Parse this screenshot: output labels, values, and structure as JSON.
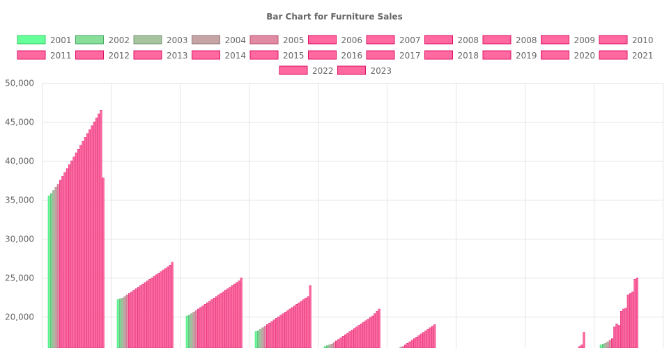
{
  "chart_data": {
    "type": "bar",
    "title": "Bar Chart for Furniture Sales",
    "xlabel": "",
    "ylabel": "",
    "ylim": [
      16000,
      50000
    ],
    "y_ticks": [
      50000,
      45000,
      40000,
      35000,
      30000,
      25000,
      20000
    ],
    "grid": true,
    "legend_position": "top",
    "categories": [
      "",
      "",
      "",
      "",
      "",
      "",
      "",
      "",
      ""
    ],
    "series": [
      {
        "name": "2001",
        "color": "#66ff99",
        "border": "#33cc66",
        "values": [
          35500,
          22200,
          20100,
          18100,
          16200,
          16000,
          16000,
          16000,
          16400
        ]
      },
      {
        "name": "2002",
        "color": "#88dd99",
        "border": "#44aa66",
        "values": [
          35800,
          22300,
          20200,
          18200,
          16300,
          16000,
          16000,
          16000,
          16500
        ]
      },
      {
        "name": "2003",
        "color": "#a8c3a0",
        "border": "#779977",
        "values": [
          36200,
          22400,
          20400,
          18400,
          16400,
          16000,
          16000,
          16000,
          16600
        ]
      },
      {
        "name": "2004",
        "color": "#c4a4a4",
        "border": "#997777",
        "values": [
          36600,
          22600,
          20600,
          18600,
          16500,
          16100,
          16000,
          16000,
          16800
        ]
      },
      {
        "name": "2005",
        "color": "#e08aa4",
        "border": "#bb5577",
        "values": [
          37000,
          22800,
          20800,
          18800,
          16700,
          16200,
          16000,
          16000,
          17000
        ]
      },
      {
        "name": "2006",
        "color": "#ff69a0",
        "border": "#dd1166",
        "values": [
          37500,
          23000,
          21000,
          19000,
          16900,
          16400,
          16000,
          16000,
          17200
        ]
      },
      {
        "name": "2007",
        "color": "#ff69a0",
        "border": "#dd1166",
        "values": [
          38000,
          23200,
          21200,
          19200,
          17100,
          16600,
          16000,
          16000,
          18700
        ]
      },
      {
        "name": "2008",
        "color": "#ff69a0",
        "border": "#dd1166",
        "values": [
          38500,
          23400,
          21400,
          19400,
          17300,
          16800,
          16000,
          16000,
          19100
        ]
      },
      {
        "name": "2008",
        "color": "#ff69a0",
        "border": "#dd1166",
        "values": [
          39000,
          23600,
          21600,
          19600,
          17500,
          17000,
          16000,
          16000,
          18900
        ]
      },
      {
        "name": "2009",
        "color": "#ff69a0",
        "border": "#dd1166",
        "values": [
          39500,
          23800,
          21800,
          19800,
          17700,
          17200,
          16000,
          16000,
          20700
        ]
      },
      {
        "name": "2010",
        "color": "#ff69a0",
        "border": "#dd1166",
        "values": [
          40000,
          24000,
          22000,
          20000,
          17900,
          17400,
          16000,
          16000,
          21000
        ]
      },
      {
        "name": "2011",
        "color": "#ff69a0",
        "border": "#dd1166",
        "values": [
          40500,
          24200,
          22200,
          20200,
          18100,
          17600,
          16000,
          16000,
          21100
        ]
      },
      {
        "name": "2012",
        "color": "#ff69a0",
        "border": "#dd1166",
        "values": [
          41000,
          24400,
          22400,
          20400,
          18300,
          17800,
          16000,
          16000,
          22800
        ]
      },
      {
        "name": "2013",
        "color": "#ff69a0",
        "border": "#dd1166",
        "values": [
          41500,
          24600,
          22600,
          20600,
          18500,
          18000,
          16000,
          16000,
          23000
        ]
      },
      {
        "name": "2014",
        "color": "#ff69a0",
        "border": "#dd1166",
        "values": [
          42000,
          24800,
          22800,
          20800,
          18700,
          18200,
          16000,
          16000,
          23200
        ]
      },
      {
        "name": "2015",
        "color": "#ff69a0",
        "border": "#dd1166",
        "values": [
          42500,
          25000,
          23000,
          21000,
          18900,
          18400,
          16000,
          16000,
          24800
        ]
      },
      {
        "name": "2016",
        "color": "#ff69a0",
        "border": "#dd1166",
        "values": [
          43000,
          25200,
          23200,
          21200,
          19100,
          18600,
          16000,
          16000,
          25000
        ]
      },
      {
        "name": "2017",
        "color": "#ff69a0",
        "border": "#dd1166",
        "values": [
          43500,
          25400,
          23400,
          21400,
          19300,
          18800,
          16000,
          16000,
          null
        ]
      },
      {
        "name": "2018",
        "color": "#ff69a0",
        "border": "#dd1166",
        "values": [
          44000,
          25600,
          23600,
          21600,
          19500,
          19000,
          16000,
          16000,
          null
        ]
      },
      {
        "name": "2019",
        "color": "#ff69a0",
        "border": "#dd1166",
        "values": [
          44500,
          25800,
          23800,
          21800,
          19700,
          null,
          16000,
          16000,
          null
        ]
      },
      {
        "name": "2020",
        "color": "#ff69a0",
        "border": "#dd1166",
        "values": [
          45000,
          26000,
          24000,
          22000,
          19900,
          null,
          null,
          16000,
          null
        ]
      },
      {
        "name": "2021",
        "color": "#ff69a0",
        "border": "#dd1166",
        "values": [
          45500,
          26200,
          24200,
          22200,
          20100,
          null,
          null,
          16200,
          null
        ]
      },
      {
        "name": "2022",
        "color": "#ff69a0",
        "border": "#dd1166",
        "values": [
          46000,
          26400,
          24400,
          22400,
          20400,
          null,
          null,
          16400,
          null
        ]
      },
      {
        "name": "2023",
        "color": "#ff69a0",
        "border": "#dd1166",
        "values": [
          46500,
          26600,
          24600,
          22600,
          20700,
          null,
          null,
          18000,
          null
        ]
      }
    ],
    "extra_bars": [
      {
        "category": 0,
        "value": 37800
      },
      {
        "category": 1,
        "value": 27000
      },
      {
        "category": 2,
        "value": 25000
      },
      {
        "category": 3,
        "value": 24000
      },
      {
        "category": 4,
        "value": 21000
      }
    ]
  }
}
